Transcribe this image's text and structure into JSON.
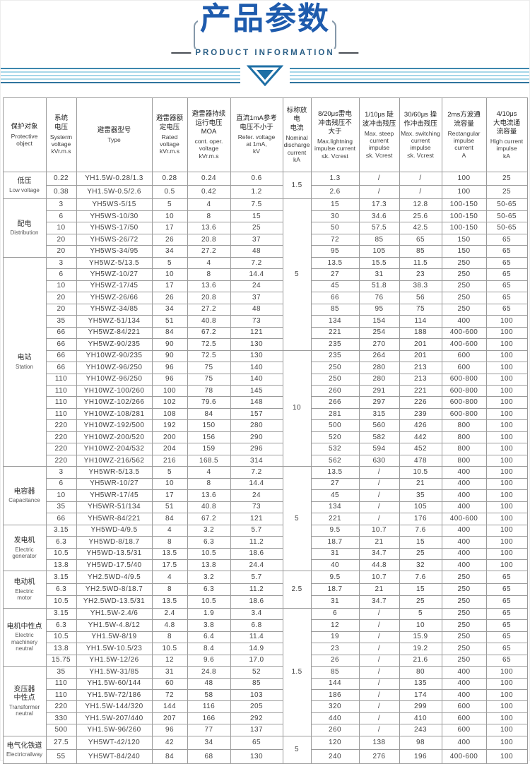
{
  "header": {
    "title": "产品参数",
    "subtitle": "PRODUCT INFORMATION"
  },
  "table": {
    "columns": [
      {
        "cn": "保护对象",
        "en": "Protective\nobject"
      },
      {
        "cn": "系统\n电压",
        "en": "Systerm\nvoltage\nkVr.m.s"
      },
      {
        "cn": "避雷器型号",
        "en": "Type"
      },
      {
        "cn": "避雷器额\n定电压",
        "en": "Rated\nvoltage\nkVr.m.s"
      },
      {
        "cn": "避雷器持续\n运行电压\nMOA",
        "en": "cont. oper.\nvoltage\nkVr.m.s"
      },
      {
        "cn": "直流1mA参考\n电压不小于",
        "en": "Refer. voltage\nat 1mA,\nkV"
      },
      {
        "cn": "标称放电\n电流",
        "en": "Nominal\ndischarge\ncurrent\nkA"
      },
      {
        "cn": "8/20μs雷电\n冲击残压不\n大于",
        "en": "Max.lightning\nimpulse current\n≤k. Vcrest"
      },
      {
        "cn": "1/10μs 陡\n波冲击残压",
        "en": "Max. steep\ncurrent\nimpulse\n≤k. Vcrest"
      },
      {
        "cn": "30/60μs 操\n作冲击残压",
        "en": "Max. switching\ncurrent\nimpulse\n≤k. Vcrest"
      },
      {
        "cn": "2ms方波通\n流容量",
        "en": "Rectangular\nimpulse\ncurrent\nA"
      },
      {
        "cn": "4/10μs\n大电流通\n流容量",
        "en": "High current\nimpulse\nkA"
      }
    ],
    "discharge_merges": [
      {
        "value": "1.5",
        "start": 0,
        "span": 2
      },
      {
        "value": "5",
        "start": 2,
        "span": 13
      },
      {
        "value": "10",
        "start": 15,
        "span": 10
      },
      {
        "value": "5",
        "start": 25,
        "span": 9
      },
      {
        "value": "2.5",
        "start": 34,
        "span": 3
      },
      {
        "value": "1.5",
        "start": 37,
        "span": 11
      },
      {
        "value": "5",
        "start": 48,
        "span": 2
      }
    ],
    "sections": [
      {
        "cn": "低压",
        "en": "Low voltage",
        "rows": [
          [
            "0.22",
            "YH1.5W-0.28/1.3",
            "0.28",
            "0.24",
            "0.6",
            "1.3",
            "/",
            "/",
            "100",
            "25"
          ],
          [
            "0.38",
            "YH1.5W-0.5/2.6",
            "0.5",
            "0.42",
            "1.2",
            "2.6",
            "/",
            "/",
            "100",
            "25"
          ]
        ]
      },
      {
        "cn": "配电",
        "en": "Distribution",
        "rows": [
          [
            "3",
            "YH5WS-5/15",
            "5",
            "4",
            "7.5",
            "15",
            "17.3",
            "12.8",
            "100-150",
            "50-65"
          ],
          [
            "6",
            "YH5WS-10/30",
            "10",
            "8",
            "15",
            "30",
            "34.6",
            "25.6",
            "100-150",
            "50-65"
          ],
          [
            "10",
            "YH5WS-17/50",
            "17",
            "13.6",
            "25",
            "50",
            "57.5",
            "42.5",
            "100-150",
            "50-65"
          ],
          [
            "20",
            "YH5WS-26/72",
            "26",
            "20.8",
            "37",
            "72",
            "85",
            "65",
            "150",
            "65"
          ],
          [
            "20",
            "YH5WS-34/95",
            "34",
            "27.2",
            "48",
            "95",
            "105",
            "85",
            "150",
            "65"
          ]
        ]
      },
      {
        "cn": "电站",
        "en": "Station",
        "rows": [
          [
            "3",
            "YH5WZ-5/13.5",
            "5",
            "4",
            "7.2",
            "13.5",
            "15.5",
            "11.5",
            "250",
            "65"
          ],
          [
            "6",
            "YH5WZ-10/27",
            "10",
            "8",
            "14.4",
            "27",
            "31",
            "23",
            "250",
            "65"
          ],
          [
            "10",
            "YH5WZ-17/45",
            "17",
            "13.6",
            "24",
            "45",
            "51.8",
            "38.3",
            "250",
            "65"
          ],
          [
            "20",
            "YH5WZ-26/66",
            "26",
            "20.8",
            "37",
            "66",
            "76",
            "56",
            "250",
            "65"
          ],
          [
            "20",
            "YH5WZ-34/85",
            "34",
            "27.2",
            "48",
            "85",
            "95",
            "75",
            "250",
            "65"
          ],
          [
            "35",
            "YH5WZ-51/134",
            "51",
            "40.8",
            "73",
            "134",
            "154",
            "114",
            "400",
            "100"
          ],
          [
            "66",
            "YH5WZ-84/221",
            "84",
            "67.2",
            "121",
            "221",
            "254",
            "188",
            "400-600",
            "100"
          ],
          [
            "66",
            "YH5WZ-90/235",
            "90",
            "72.5",
            "130",
            "235",
            "270",
            "201",
            "400-600",
            "100"
          ],
          [
            "66",
            "YH10WZ-90/235",
            "90",
            "72.5",
            "130",
            "235",
            "264",
            "201",
            "600",
            "100"
          ],
          [
            "66",
            "YH10WZ-96/250",
            "96",
            "75",
            "140",
            "250",
            "280",
            "213",
            "600",
            "100"
          ],
          [
            "110",
            "YH10WZ-96/250",
            "96",
            "75",
            "140",
            "250",
            "280",
            "213",
            "600-800",
            "100"
          ],
          [
            "110",
            "YH10WZ-100/260",
            "100",
            "78",
            "145",
            "260",
            "291",
            "221",
            "600-800",
            "100"
          ],
          [
            "110",
            "YH10WZ-102/266",
            "102",
            "79.6",
            "148",
            "266",
            "297",
            "226",
            "600-800",
            "100"
          ],
          [
            "110",
            "YH10WZ-108/281",
            "108",
            "84",
            "157",
            "281",
            "315",
            "239",
            "600-800",
            "100"
          ],
          [
            "220",
            "YH10WZ-192/500",
            "192",
            "150",
            "280",
            "500",
            "560",
            "426",
            "800",
            "100"
          ],
          [
            "220",
            "YH10WZ-200/520",
            "200",
            "156",
            "290",
            "520",
            "582",
            "442",
            "800",
            "100"
          ],
          [
            "220",
            "YH10WZ-204/532",
            "204",
            "159",
            "296",
            "532",
            "594",
            "452",
            "800",
            "100"
          ],
          [
            "220",
            "YH10WZ-216/562",
            "216",
            "168.5",
            "314",
            "562",
            "630",
            "478",
            "800",
            "100"
          ]
        ]
      },
      {
        "cn": "电容器",
        "en": "Capacitance",
        "rows": [
          [
            "3",
            "YH5WR-5/13.5",
            "5",
            "4",
            "7.2",
            "13.5",
            "/",
            "10.5",
            "400",
            "100"
          ],
          [
            "6",
            "YH5WR-10/27",
            "10",
            "8",
            "14.4",
            "27",
            "/",
            "21",
            "400",
            "100"
          ],
          [
            "10",
            "YH5WR-17/45",
            "17",
            "13.6",
            "24",
            "45",
            "/",
            "35",
            "400",
            "100"
          ],
          [
            "35",
            "YH5WR-51/134",
            "51",
            "40.8",
            "73",
            "134",
            "/",
            "105",
            "400",
            "100"
          ],
          [
            "66",
            "YH5WR-84/221",
            "84",
            "67.2",
            "121",
            "221",
            "/",
            "176",
            "400-600",
            "100"
          ]
        ]
      },
      {
        "cn": "发电机",
        "en": "Electric\ngenerator",
        "rows": [
          [
            "3.15",
            "YH5WD-4/9.5",
            "4",
            "3.2",
            "5.7",
            "9.5",
            "10.7",
            "7.6",
            "400",
            "100"
          ],
          [
            "6.3",
            "YH5WD-8/18.7",
            "8",
            "6.3",
            "11.2",
            "18.7",
            "21",
            "15",
            "400",
            "100"
          ],
          [
            "10.5",
            "YH5WD-13.5/31",
            "13.5",
            "10.5",
            "18.6",
            "31",
            "34.7",
            "25",
            "400",
            "100"
          ],
          [
            "13.8",
            "YH5WD-17.5/40",
            "17.5",
            "13.8",
            "24.4",
            "40",
            "44.8",
            "32",
            "400",
            "100"
          ]
        ]
      },
      {
        "cn": "电动机",
        "en": "Electric\nmotor",
        "rows": [
          [
            "3.15",
            "YH2.5WD-4/9.5",
            "4",
            "3.2",
            "5.7",
            "9.5",
            "10.7",
            "7.6",
            "250",
            "65"
          ],
          [
            "6.3",
            "YH2.5WD-8/18.7",
            "8",
            "6.3",
            "11.2",
            "18.7",
            "21",
            "15",
            "250",
            "65"
          ],
          [
            "10.5",
            "YH2.5WD-13.5/31",
            "13.5",
            "10.5",
            "18.6",
            "31",
            "34.7",
            "25",
            "250",
            "65"
          ]
        ]
      },
      {
        "cn": "电机中性点",
        "en": "Electric\nmachinery\nneutral",
        "rows": [
          [
            "3.15",
            "YH1.5W-2.4/6",
            "2.4",
            "1.9",
            "3.4",
            "6",
            "/",
            "5",
            "250",
            "65"
          ],
          [
            "6.3",
            "YH1.5W-4.8/12",
            "4.8",
            "3.8",
            "6.8",
            "12",
            "/",
            "10",
            "250",
            "65"
          ],
          [
            "10.5",
            "YH1.5W-8/19",
            "8",
            "6.4",
            "11.4",
            "19",
            "/",
            "15.9",
            "250",
            "65"
          ],
          [
            "13.8",
            "YH1.5W-10.5/23",
            "10.5",
            "8.4",
            "14.9",
            "23",
            "/",
            "19.2",
            "250",
            "65"
          ],
          [
            "15.75",
            "YH1.5W-12/26",
            "12",
            "9.6",
            "17.0",
            "26",
            "/",
            "21.6",
            "250",
            "65"
          ]
        ]
      },
      {
        "cn": "变压器\n中性点",
        "en": "Transformer\nneutral",
        "rows": [
          [
            "35",
            "YH1.5W-31/85",
            "31",
            "24.8",
            "52",
            "85",
            "/",
            "80",
            "400",
            "100"
          ],
          [
            "110",
            "YH1.5W-60/144",
            "60",
            "48",
            "85",
            "144",
            "/",
            "135",
            "400",
            "100"
          ],
          [
            "110",
            "YH1.5W-72/186",
            "72",
            "58",
            "103",
            "186",
            "/",
            "174",
            "400",
            "100"
          ],
          [
            "220",
            "YH1.5W-144/320",
            "144",
            "116",
            "205",
            "320",
            "/",
            "299",
            "600",
            "100"
          ],
          [
            "330",
            "YH1.5W-207/440",
            "207",
            "166",
            "292",
            "440",
            "/",
            "410",
            "600",
            "100"
          ],
          [
            "500",
            "YH1.5W-96/260",
            "96",
            "77",
            "137",
            "260",
            "/",
            "243",
            "600",
            "100"
          ]
        ]
      },
      {
        "cn": "电气化铁道",
        "en": "Electricrailway",
        "rows": [
          [
            "27.5",
            "YH5WT-42/120",
            "42",
            "34",
            "65",
            "120",
            "138",
            "98",
            "400",
            "100"
          ],
          [
            "55",
            "YH5WT-84/240",
            "84",
            "68",
            "130",
            "240",
            "276",
            "196",
            "400-600",
            "100"
          ]
        ]
      }
    ],
    "colors": {
      "title_blue": "#1e5bad",
      "stripe_light": "#a6d7e9",
      "stripe_dark": "#2f749e",
      "border_gray": "#9b9b9b"
    }
  }
}
